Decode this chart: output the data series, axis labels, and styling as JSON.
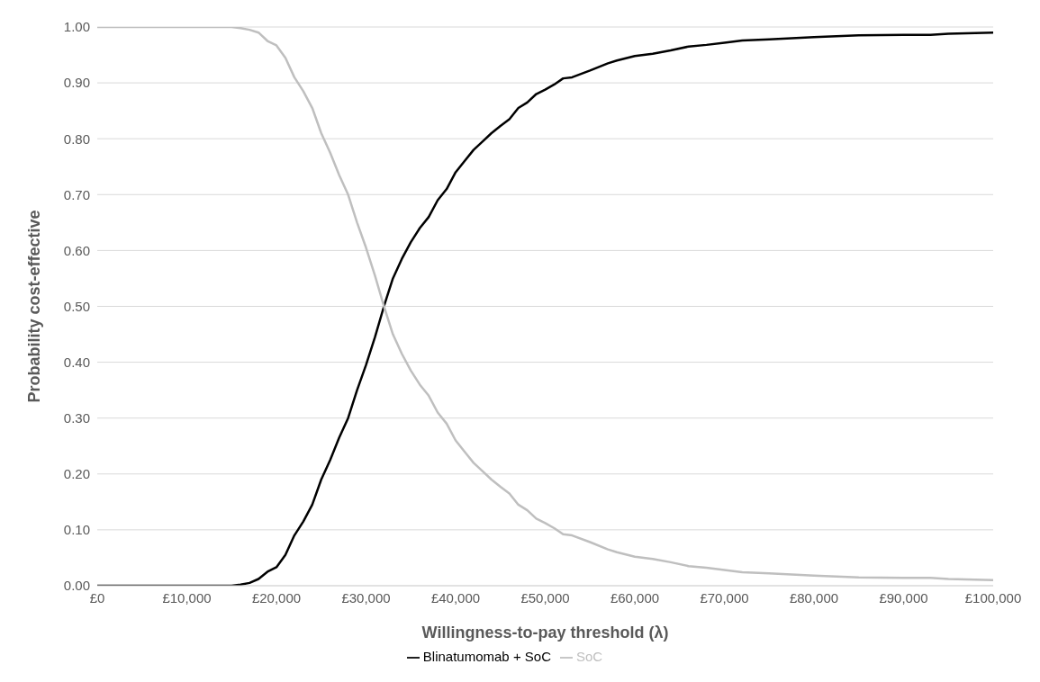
{
  "chart_data": {
    "type": "line",
    "xlabel": "Willingness-to-pay threshold (λ)",
    "ylabel": "Probability cost-effective",
    "x": [
      0,
      5000,
      10000,
      14000,
      15000,
      16000,
      17000,
      18000,
      19000,
      20000,
      21000,
      22000,
      23000,
      24000,
      25000,
      26000,
      27000,
      28000,
      29000,
      30000,
      31000,
      32000,
      33000,
      34000,
      35000,
      36000,
      37000,
      38000,
      39000,
      40000,
      41000,
      42000,
      43000,
      44000,
      45000,
      46000,
      47000,
      48000,
      49000,
      50000,
      51000,
      52000,
      53000,
      55000,
      57000,
      58000,
      60000,
      62000,
      64000,
      66000,
      68000,
      70000,
      72000,
      75000,
      80000,
      85000,
      90000,
      93000,
      95000,
      100000
    ],
    "series": [
      {
        "name": "Blinatumomab + SoC",
        "color": "#000000",
        "values": [
          0,
          0,
          0,
          0,
          0,
          0.002,
          0.005,
          0.012,
          0.025,
          0.033,
          0.055,
          0.09,
          0.115,
          0.145,
          0.19,
          0.225,
          0.265,
          0.3,
          0.35,
          0.395,
          0.445,
          0.5,
          0.55,
          0.585,
          0.615,
          0.64,
          0.66,
          0.69,
          0.71,
          0.74,
          0.76,
          0.78,
          0.795,
          0.81,
          0.823,
          0.835,
          0.855,
          0.865,
          0.88,
          0.888,
          0.897,
          0.908,
          0.91,
          0.922,
          0.935,
          0.94,
          0.948,
          0.952,
          0.958,
          0.965,
          0.968,
          0.972,
          0.976,
          0.978,
          0.982,
          0.985,
          0.986,
          0.986,
          0.988,
          0.99
        ]
      },
      {
        "name": "SoC",
        "color": "#bfbfbf",
        "values": [
          1,
          1,
          1,
          1,
          1,
          0.998,
          0.995,
          0.99,
          0.975,
          0.967,
          0.945,
          0.91,
          0.885,
          0.855,
          0.81,
          0.775,
          0.735,
          0.7,
          0.65,
          0.605,
          0.555,
          0.5,
          0.45,
          0.415,
          0.385,
          0.36,
          0.34,
          0.31,
          0.29,
          0.26,
          0.24,
          0.22,
          0.205,
          0.19,
          0.177,
          0.165,
          0.145,
          0.135,
          0.12,
          0.112,
          0.103,
          0.092,
          0.09,
          0.078,
          0.065,
          0.06,
          0.052,
          0.048,
          0.042,
          0.035,
          0.032,
          0.028,
          0.024,
          0.022,
          0.018,
          0.015,
          0.014,
          0.014,
          0.012,
          0.01
        ]
      }
    ],
    "xlim": [
      0,
      100000
    ],
    "xticks": [
      {
        "value": 0,
        "label": "£0"
      },
      {
        "value": 10000,
        "label": "£10,000"
      },
      {
        "value": 20000,
        "label": "£20,000"
      },
      {
        "value": 30000,
        "label": "£30,000"
      },
      {
        "value": 40000,
        "label": "£40,000"
      },
      {
        "value": 50000,
        "label": "£50,000"
      },
      {
        "value": 60000,
        "label": "£60,000"
      },
      {
        "value": 70000,
        "label": "£70,000"
      },
      {
        "value": 80000,
        "label": "£80,000"
      },
      {
        "value": 90000,
        "label": "£90,000"
      },
      {
        "value": 100000,
        "label": "£100,000"
      }
    ],
    "ylim": [
      0,
      1
    ],
    "yticks": [
      {
        "value": 0,
        "label": "0.00"
      },
      {
        "value": 0.1,
        "label": "0.10"
      },
      {
        "value": 0.2,
        "label": "0.20"
      },
      {
        "value": 0.3,
        "label": "0.30"
      },
      {
        "value": 0.4,
        "label": "0.40"
      },
      {
        "value": 0.5,
        "label": "0.50"
      },
      {
        "value": 0.6,
        "label": "0.60"
      },
      {
        "value": 0.7,
        "label": "0.70"
      },
      {
        "value": 0.8,
        "label": "0.80"
      },
      {
        "value": 0.9,
        "label": "0.90"
      },
      {
        "value": 1,
        "label": "1.00"
      }
    ],
    "grid": "y",
    "legend": "bottom",
    "marker": "none",
    "line_style": "solid"
  }
}
